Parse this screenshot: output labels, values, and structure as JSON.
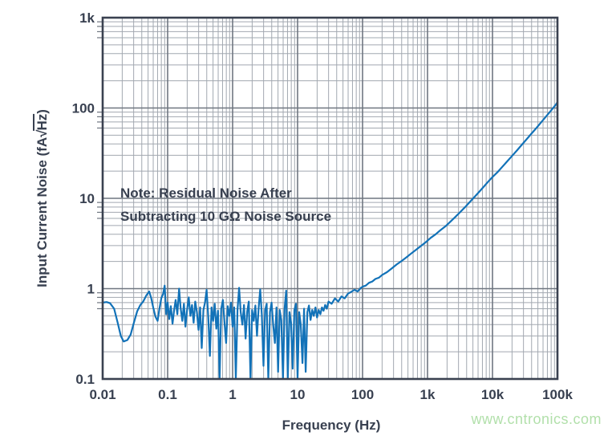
{
  "watermark": "www.cntronics.com",
  "chart_data": {
    "type": "line",
    "title": "",
    "xlabel": "Frequency (Hz)",
    "ylabel": {
      "prefix": "Input Current Noise (fA",
      "radical": "√",
      "overline_unit": "Hz",
      "suffix": ")"
    },
    "x_scale": "log",
    "y_scale": "log",
    "xlim": [
      0.01,
      100000
    ],
    "ylim": [
      0.1,
      1000
    ],
    "x_tick_labels": [
      "0.01",
      "0.1",
      "1",
      "10",
      "100",
      "1k",
      "10k",
      "100k"
    ],
    "y_tick_labels": [
      "0.1",
      "1",
      "10",
      "100",
      "1k"
    ],
    "grid": "log-major-minor",
    "legend": "none",
    "annotation": {
      "line1": "Note: Residual Noise After",
      "line2": "Subtracting 10 GΩ Noise Source"
    },
    "colors": {
      "curve": "#1272b8",
      "grid_minor": "#a2a8b0",
      "grid_major": "#6f7680",
      "frame": "#3a4150",
      "text": "#384050",
      "watermark": "#b2e0ab"
    },
    "points": [
      [
        0.01,
        0.7
      ],
      [
        0.0115,
        0.71
      ],
      [
        0.013,
        0.69
      ],
      [
        0.015,
        0.6
      ],
      [
        0.017,
        0.42
      ],
      [
        0.019,
        0.3
      ],
      [
        0.021,
        0.26
      ],
      [
        0.024,
        0.27
      ],
      [
        0.027,
        0.31
      ],
      [
        0.03,
        0.41
      ],
      [
        0.034,
        0.56
      ],
      [
        0.038,
        0.66
      ],
      [
        0.042,
        0.72
      ],
      [
        0.047,
        0.84
      ],
      [
        0.052,
        0.93
      ],
      [
        0.056,
        0.78
      ],
      [
        0.06,
        0.62
      ],
      [
        0.065,
        0.49
      ],
      [
        0.07,
        0.44
      ],
      [
        0.075,
        0.61
      ],
      [
        0.08,
        0.79
      ],
      [
        0.085,
        0.87
      ],
      [
        0.09,
        1.08
      ],
      [
        0.095,
        0.52
      ],
      [
        0.1,
        0.7
      ],
      [
        0.106,
        0.46
      ],
      [
        0.112,
        0.64
      ],
      [
        0.119,
        0.41
      ],
      [
        0.126,
        0.58
      ],
      [
        0.133,
        0.75
      ],
      [
        0.141,
        0.52
      ],
      [
        0.15,
        1.0
      ],
      [
        0.158,
        0.62
      ],
      [
        0.168,
        0.44
      ],
      [
        0.178,
        0.68
      ],
      [
        0.188,
        0.38
      ],
      [
        0.2,
        0.6
      ],
      [
        0.211,
        0.8
      ],
      [
        0.224,
        0.5
      ],
      [
        0.237,
        0.66
      ],
      [
        0.251,
        0.42
      ],
      [
        0.266,
        0.72
      ],
      [
        0.282,
        0.55
      ],
      [
        0.299,
        0.35
      ],
      [
        0.316,
        0.62
      ],
      [
        0.335,
        0.22
      ],
      [
        0.355,
        0.58
      ],
      [
        0.376,
        0.7
      ],
      [
        0.398,
        0.97
      ],
      [
        0.422,
        0.48
      ],
      [
        0.447,
        0.18
      ],
      [
        0.473,
        0.62
      ],
      [
        0.501,
        0.44
      ],
      [
        0.531,
        0.68
      ],
      [
        0.562,
        0.36
      ],
      [
        0.596,
        0.57
      ],
      [
        0.631,
        0.1
      ],
      [
        0.668,
        0.6
      ],
      [
        0.708,
        0.75
      ],
      [
        0.75,
        0.42
      ],
      [
        0.794,
        0.25
      ],
      [
        0.841,
        0.64
      ],
      [
        0.891,
        0.5
      ],
      [
        0.944,
        0.7
      ],
      [
        1.0,
        0.38
      ],
      [
        1.059,
        0.62
      ],
      [
        1.122,
        0.1
      ],
      [
        1.189,
        0.58
      ],
      [
        1.259,
        1.02
      ],
      [
        1.334,
        0.55
      ],
      [
        1.413,
        0.4
      ],
      [
        1.496,
        0.66
      ],
      [
        1.585,
        0.28
      ],
      [
        1.679,
        0.56
      ],
      [
        1.778,
        0.72
      ],
      [
        1.884,
        0.1
      ],
      [
        1.995,
        0.58
      ],
      [
        2.113,
        0.44
      ],
      [
        2.239,
        0.65
      ],
      [
        2.371,
        0.3
      ],
      [
        2.512,
        0.6
      ],
      [
        2.661,
        0.98
      ],
      [
        2.818,
        0.52
      ],
      [
        2.985,
        0.14
      ],
      [
        3.162,
        0.58
      ],
      [
        3.35,
        0.68
      ],
      [
        3.548,
        0.1
      ],
      [
        3.758,
        0.55
      ],
      [
        3.981,
        0.7
      ],
      [
        4.217,
        0.4
      ],
      [
        4.467,
        0.25
      ],
      [
        4.732,
        0.62
      ],
      [
        5.012,
        0.12
      ],
      [
        5.309,
        0.58
      ],
      [
        5.623,
        0.45
      ],
      [
        5.957,
        0.1
      ],
      [
        6.31,
        0.6
      ],
      [
        6.683,
        0.95
      ],
      [
        7.079,
        0.1
      ],
      [
        7.499,
        0.55
      ],
      [
        7.943,
        0.42
      ],
      [
        8.414,
        0.13
      ],
      [
        8.913,
        0.58
      ],
      [
        9.441,
        0.68
      ],
      [
        10.0,
        0.1
      ],
      [
        10.59,
        0.55
      ],
      [
        11.22,
        0.4
      ],
      [
        11.89,
        0.15
      ],
      [
        12.59,
        0.6
      ],
      [
        13.34,
        0.12
      ],
      [
        14.13,
        0.55
      ],
      [
        14.96,
        0.65
      ],
      [
        15.85,
        0.45
      ],
      [
        16.79,
        0.58
      ],
      [
        17.78,
        0.5
      ],
      [
        18.84,
        0.62
      ],
      [
        19.95,
        0.48
      ],
      [
        21.13,
        0.58
      ],
      [
        22.39,
        0.52
      ],
      [
        23.71,
        0.62
      ],
      [
        25.12,
        0.57
      ],
      [
        26.61,
        0.66
      ],
      [
        28.18,
        0.6
      ],
      [
        30.0,
        0.72
      ],
      [
        33.5,
        0.68
      ],
      [
        37.6,
        0.78
      ],
      [
        42.2,
        0.72
      ],
      [
        47.3,
        0.82
      ],
      [
        53.1,
        0.78
      ],
      [
        59.6,
        0.88
      ],
      [
        66.8,
        0.92
      ],
      [
        75.0,
        0.97
      ],
      [
        84.1,
        0.93
      ],
      [
        94.4,
        1.02
      ],
      [
        100,
        1.05
      ],
      [
        112,
        1.08
      ],
      [
        126,
        1.16
      ],
      [
        141,
        1.2
      ],
      [
        158,
        1.28
      ],
      [
        178,
        1.32
      ],
      [
        200,
        1.42
      ],
      [
        237,
        1.52
      ],
      [
        282,
        1.68
      ],
      [
        335,
        1.85
      ],
      [
        398,
        2.02
      ],
      [
        473,
        2.22
      ],
      [
        562,
        2.45
      ],
      [
        668,
        2.7
      ],
      [
        794,
        2.98
      ],
      [
        944,
        3.28
      ],
      [
        1122,
        3.65
      ],
      [
        1334,
        4.0
      ],
      [
        1585,
        4.45
      ],
      [
        1884,
        4.9
      ],
      [
        2239,
        5.5
      ],
      [
        2661,
        6.2
      ],
      [
        3162,
        7.0
      ],
      [
        3758,
        7.95
      ],
      [
        4467,
        9.1
      ],
      [
        5309,
        10.4
      ],
      [
        6310,
        11.9
      ],
      [
        7499,
        13.7
      ],
      [
        8913,
        15.8
      ],
      [
        10000,
        17.2
      ],
      [
        11890,
        19.4
      ],
      [
        14130,
        22.3
      ],
      [
        16790,
        25.6
      ],
      [
        19950,
        29.4
      ],
      [
        23710,
        33.8
      ],
      [
        28180,
        39.0
      ],
      [
        33500,
        45.0
      ],
      [
        39810,
        52.0
      ],
      [
        47320,
        60.0
      ],
      [
        56230,
        69.5
      ],
      [
        66830,
        80.5
      ],
      [
        79430,
        93.5
      ],
      [
        94410,
        109
      ],
      [
        100000,
        116
      ]
    ]
  }
}
